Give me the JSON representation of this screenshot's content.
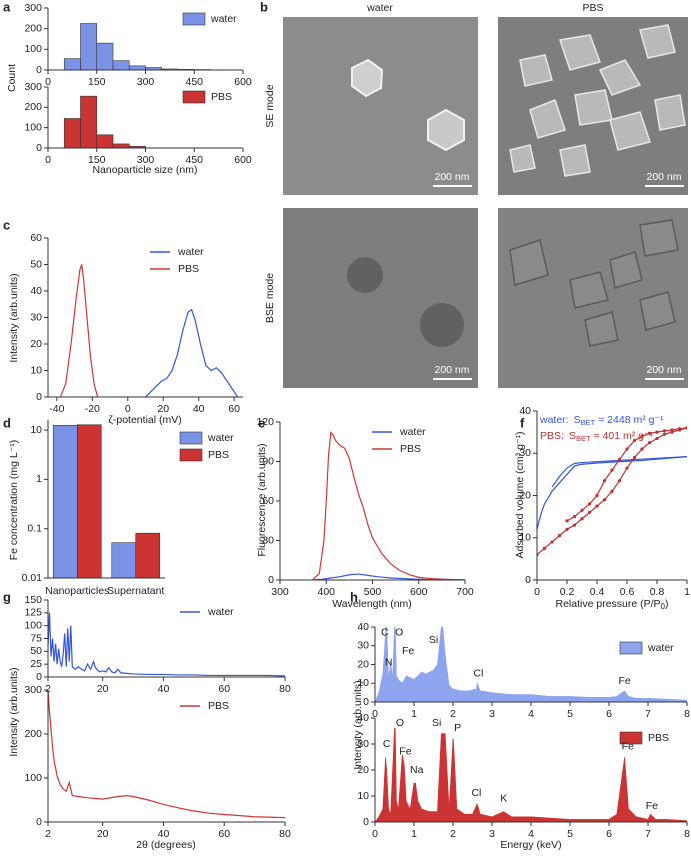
{
  "panel_labels": [
    "a",
    "b",
    "c",
    "d",
    "e",
    "f",
    "g",
    "h"
  ],
  "images": {
    "columns": [
      "water",
      "PBS"
    ],
    "rows": [
      "SE mode",
      "BSE mode"
    ],
    "scale_bar": "200 nm"
  },
  "chart_data": [
    {
      "type": "histogram",
      "ylabel": "Count",
      "bins": [
        50,
        100,
        150,
        200,
        250,
        300,
        350,
        400,
        450,
        500,
        550
      ],
      "series": [
        {
          "name": "water",
          "color": "#7b93e6",
          "values": [
            55,
            225,
            130,
            45,
            20,
            12,
            5,
            3,
            2,
            1
          ]
        }
      ],
      "xlim": [
        0,
        600
      ],
      "ylim": [
        0,
        300
      ],
      "xticks": [
        0,
        150,
        300,
        450,
        600
      ],
      "yticks": [
        0,
        100,
        200,
        300
      ]
    },
    {
      "type": "histogram",
      "xlabel": "Nanoparticle size (nm)",
      "bins": [
        50,
        100,
        150,
        200,
        250,
        300
      ],
      "series": [
        {
          "name": "PBS",
          "color": "#cc3333",
          "values": [
            145,
            255,
            65,
            20,
            8
          ]
        }
      ],
      "xlim": [
        0,
        600
      ],
      "ylim": [
        0,
        300
      ],
      "xticks": [
        0,
        150,
        300,
        450,
        600
      ],
      "yticks": [
        0,
        100,
        200,
        300
      ]
    },
    {
      "type": "line",
      "xlabel": "ζ-potential (mV)",
      "ylabel": "Intensity (arb.units)",
      "xlim": [
        -45,
        65
      ],
      "ylim": [
        0,
        60
      ],
      "xticks": [
        -40,
        -20,
        0,
        20,
        40,
        60
      ],
      "yticks": [
        0,
        10,
        20,
        30,
        40,
        50,
        60
      ],
      "series": [
        {
          "name": "water",
          "color": "#3355dd",
          "x": [
            10,
            13,
            16,
            19,
            22,
            25,
            28,
            31,
            34,
            36,
            38,
            41,
            44,
            47,
            50,
            53,
            56,
            59,
            62
          ],
          "values": [
            0,
            2,
            4,
            6,
            7,
            10,
            16,
            25,
            32,
            33,
            29,
            20,
            12,
            10,
            11,
            9,
            6,
            3,
            0
          ]
        },
        {
          "name": "PBS",
          "color": "#d03535",
          "x": [
            -38,
            -35,
            -32,
            -29,
            -27,
            -26,
            -25,
            -23,
            -21,
            -19,
            -17
          ],
          "values": [
            0,
            5,
            20,
            38,
            48,
            50,
            45,
            30,
            15,
            5,
            0
          ]
        }
      ]
    },
    {
      "type": "bar",
      "ylabel": "Fe concentration (mg L⁻¹)",
      "yscale": "log",
      "categories": [
        "Nanoparticles",
        "Supernatant"
      ],
      "ylim": [
        0.01,
        16
      ],
      "yticks": [
        0.01,
        0.1,
        1,
        10
      ],
      "series": [
        {
          "name": "water",
          "color": "#7b93e6",
          "values": [
            12.5,
            0.052
          ]
        },
        {
          "name": "PBS",
          "color": "#cc3333",
          "values": [
            12.8,
            0.081
          ]
        }
      ]
    },
    {
      "type": "line",
      "xlabel": "Wavelength (nm)",
      "ylabel": "Fluorescence (arb.units)",
      "xlim": [
        300,
        700
      ],
      "ylim": [
        0,
        120
      ],
      "xticks": [
        300,
        400,
        500,
        600,
        700
      ],
      "yticks": [
        0,
        30,
        60,
        90,
        120
      ],
      "series": [
        {
          "name": "water",
          "color": "#3355dd",
          "x": [
            370,
            390,
            410,
            430,
            450,
            470,
            490,
            510,
            540,
            580,
            620,
            660,
            700
          ],
          "values": [
            0,
            0.5,
            1.5,
            2.5,
            4,
            4.5,
            3.5,
            2.5,
            1.5,
            0.8,
            0.3,
            0.1,
            0
          ]
        },
        {
          "name": "PBS",
          "color": "#d03535",
          "x": [
            370,
            385,
            395,
            400,
            405,
            410,
            415,
            420,
            430,
            440,
            450,
            460,
            470,
            480,
            490,
            500,
            520,
            540,
            560,
            580,
            600,
            630,
            660,
            700
          ],
          "values": [
            0,
            5,
            30,
            60,
            95,
            112,
            110,
            106,
            102,
            100,
            92,
            78,
            65,
            55,
            42,
            32,
            20,
            12,
            7,
            4,
            2,
            1,
            0.5,
            0
          ]
        }
      ]
    },
    {
      "type": "line",
      "xlabel_parts": [
        "Relative pressure (P/P",
        "0",
        ")"
      ],
      "ylabel": "Adsorbed volume (cm³ g⁻¹)",
      "xlim": [
        0,
        1
      ],
      "ylim": [
        0,
        40
      ],
      "xticks": [
        0,
        0.2,
        0.4,
        0.6,
        0.8,
        1
      ],
      "yticks": [
        0,
        10,
        20,
        30,
        40
      ],
      "annotations": [
        {
          "parts": [
            "water:",
            "S",
            "BET",
            " = 2448 m² g⁻¹"
          ],
          "color": "#3355dd"
        },
        {
          "parts": [
            "PBS:",
            "S",
            "BET",
            " = 401 m² g⁻¹"
          ],
          "color": "#c03030"
        }
      ],
      "series": [
        {
          "color": "#3355dd",
          "x": [
            0,
            0.01,
            0.03,
            0.05,
            0.1,
            0.15,
            0.2,
            0.25,
            0.3,
            0.4,
            0.5,
            0.6,
            0.7,
            0.8,
            0.9,
            1
          ],
          "values": [
            12,
            13.5,
            16,
            18,
            21,
            23,
            25,
            27,
            27.4,
            27.7,
            27.9,
            28.1,
            28.3,
            28.6,
            28.9,
            29.2
          ]
        },
        {
          "color": "#3355dd",
          "x": [
            1,
            0.9,
            0.8,
            0.7,
            0.6,
            0.5,
            0.4,
            0.3,
            0.25,
            0.2,
            0.15,
            0.1
          ],
          "values": [
            29.2,
            29,
            28.8,
            28.6,
            28.4,
            28.2,
            28,
            27.8,
            27.6,
            26.5,
            24.5,
            22
          ]
        },
        {
          "color": "#c03030",
          "marker": true,
          "x": [
            0,
            0.05,
            0.1,
            0.15,
            0.2,
            0.25,
            0.3,
            0.35,
            0.4,
            0.45,
            0.5,
            0.55,
            0.6,
            0.65,
            0.7,
            0.75,
            0.8,
            0.85,
            0.9,
            0.95,
            1
          ],
          "values": [
            6,
            7.5,
            9,
            10.5,
            12,
            13,
            14.5,
            16,
            17.5,
            19,
            21,
            23.5,
            26.5,
            29,
            31,
            32.5,
            33.5,
            34.5,
            35,
            35.5,
            36
          ]
        },
        {
          "color": "#c03030",
          "marker": true,
          "x": [
            1,
            0.95,
            0.9,
            0.85,
            0.8,
            0.75,
            0.7,
            0.65,
            0.6,
            0.55,
            0.5,
            0.45,
            0.4,
            0.35,
            0.3,
            0.25,
            0.2
          ],
          "values": [
            36,
            35.8,
            35.5,
            35.3,
            35,
            34.7,
            34,
            33,
            31,
            28.5,
            26,
            23.5,
            20,
            18,
            16.5,
            15,
            14
          ]
        }
      ]
    },
    {
      "type": "line",
      "ylabel": "Intensity (arb.units)",
      "xlim": [
        2,
        80
      ],
      "ylim": [
        0,
        150
      ],
      "xticks": [
        2,
        20,
        40,
        60,
        80
      ],
      "yticks": [
        0,
        25,
        50,
        75,
        100,
        125,
        150
      ],
      "series": [
        {
          "name": "water",
          "color": "#3355dd",
          "x": [
            2,
            2.5,
            3,
            3.5,
            4,
            4.5,
            5,
            5.5,
            6,
            6.5,
            7,
            7.5,
            8,
            8.5,
            9,
            9.5,
            10,
            11,
            12,
            13,
            14,
            15,
            16,
            17,
            17.5,
            18,
            19,
            20,
            21,
            22,
            23,
            24,
            25,
            26,
            28,
            30,
            35,
            40,
            45,
            50,
            55,
            60,
            65,
            70,
            75,
            80
          ],
          "values": [
            60,
            125,
            40,
            75,
            30,
            65,
            25,
            55,
            30,
            20,
            45,
            85,
            20,
            95,
            30,
            100,
            20,
            15,
            20,
            15,
            12,
            25,
            15,
            30,
            20,
            15,
            10,
            12,
            10,
            18,
            10,
            8,
            15,
            8,
            7,
            6,
            5,
            5,
            4,
            4,
            3,
            3,
            3,
            3,
            3,
            2
          ]
        }
      ]
    },
    {
      "type": "line",
      "xlabel": "2θ (degrees)",
      "xlim": [
        2,
        80
      ],
      "ylim": [
        0,
        300
      ],
      "xticks": [
        2,
        20,
        40,
        60,
        80
      ],
      "yticks": [
        0,
        100,
        200,
        300
      ],
      "series": [
        {
          "name": "PBS",
          "color": "#d03535",
          "x": [
            2,
            2.5,
            3,
            3.5,
            4,
            5,
            6,
            7,
            8,
            9,
            10,
            12,
            15,
            20,
            25,
            28,
            30,
            35,
            40,
            45,
            50,
            55,
            60,
            70,
            80
          ],
          "values": [
            300,
            250,
            210,
            170,
            140,
            105,
            85,
            75,
            70,
            90,
            60,
            58,
            55,
            52,
            58,
            60,
            58,
            50,
            40,
            32,
            25,
            20,
            17,
            12,
            10
          ]
        }
      ]
    },
    {
      "type": "area",
      "ylabel": "Intensity (arb.units)",
      "xlim": [
        0,
        8
      ],
      "ylim": [
        0,
        40
      ],
      "xticks": [
        0,
        1,
        2,
        3,
        4,
        5,
        6,
        7,
        8
      ],
      "yticks": [
        0,
        10,
        20,
        30,
        40
      ],
      "annotations": [
        "C",
        "O",
        "N",
        "Fe",
        "Si",
        "Cl",
        "Fe"
      ],
      "series": [
        {
          "name": "water",
          "color": "#8fa4ee",
          "x": [
            0,
            0.1,
            0.2,
            0.25,
            0.28,
            0.3,
            0.35,
            0.4,
            0.45,
            0.5,
            0.52,
            0.55,
            0.6,
            0.7,
            0.8,
            0.9,
            1.0,
            1.1,
            1.2,
            1.3,
            1.4,
            1.5,
            1.6,
            1.7,
            1.74,
            1.8,
            1.9,
            2.0,
            2.2,
            2.4,
            2.6,
            2.62,
            2.7,
            3.0,
            3.5,
            4,
            4.5,
            5,
            5.5,
            6,
            6.2,
            6.4,
            6.5,
            6.7,
            7,
            7.5,
            8
          ],
          "values": [
            0,
            5,
            15,
            30,
            40,
            40,
            12,
            22,
            12,
            40,
            40,
            14,
            12,
            10,
            14,
            13,
            12,
            14,
            16,
            15,
            16,
            17,
            20,
            40,
            40,
            25,
            9,
            7,
            6,
            6,
            7,
            10,
            6,
            5,
            4,
            4,
            3,
            3,
            2.5,
            2.5,
            3,
            6,
            3,
            2,
            2,
            1.5,
            1
          ]
        }
      ]
    },
    {
      "type": "area",
      "xlabel": "Energy (keV)",
      "xlim": [
        0,
        8
      ],
      "ylim": [
        0,
        40
      ],
      "xticks": [
        0,
        1,
        2,
        3,
        4,
        5,
        6,
        7,
        8
      ],
      "yticks": [
        0,
        10,
        20,
        30,
        40
      ],
      "annotations": [
        "C",
        "O",
        "Fe",
        "Na",
        "Si",
        "P",
        "Cl",
        "K",
        "Fe",
        "Fe"
      ],
      "series": [
        {
          "name": "PBS",
          "color": "#cc3333",
          "x": [
            0,
            0.1,
            0.2,
            0.27,
            0.3,
            0.35,
            0.4,
            0.5,
            0.52,
            0.55,
            0.6,
            0.7,
            0.75,
            0.8,
            0.9,
            1.0,
            1.04,
            1.1,
            1.2,
            1.4,
            1.6,
            1.7,
            1.74,
            1.8,
            1.9,
            2.0,
            2.01,
            2.1,
            2.3,
            2.5,
            2.62,
            2.7,
            3.0,
            3.3,
            3.5,
            4,
            5,
            6,
            6.2,
            6.4,
            6.5,
            6.7,
            7.0,
            7.06,
            7.2,
            7.5,
            8
          ],
          "values": [
            0,
            2,
            5,
            25,
            20,
            5,
            3,
            36,
            36,
            8,
            5,
            26,
            22,
            8,
            5,
            15,
            15,
            8,
            5,
            4,
            4,
            34,
            34,
            34,
            5,
            32,
            32,
            5,
            3,
            3,
            7,
            3,
            2,
            4,
            2,
            2,
            1,
            1,
            3,
            25,
            5,
            2,
            1,
            3,
            1,
            1,
            0.5
          ]
        }
      ]
    }
  ]
}
